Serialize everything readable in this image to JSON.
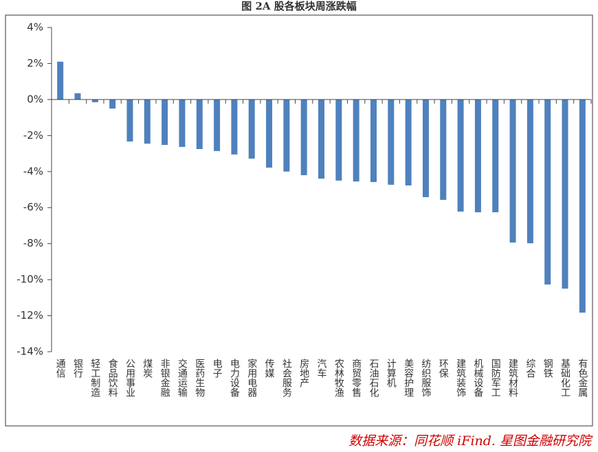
{
  "chart_data": {
    "type": "bar",
    "title": "图 2A 股各板块周涨跌幅",
    "source": "数据来源：同花顺 iFind. 星图金融研究院",
    "categories": [
      "通信",
      "银行",
      "轻工制造",
      "食品饮料",
      "公用事业",
      "煤炭",
      "非银金融",
      "交通运输",
      "医药生物",
      "电子",
      "电力设备",
      "家用电器",
      "传媒",
      "社会服务",
      "房地产",
      "汽车",
      "农林牧渔",
      "商贸零售",
      "石油石化",
      "计算机",
      "美容护理",
      "纺织服饰",
      "环保",
      "建筑装饰",
      "机械设备",
      "国防军工",
      "建筑材料",
      "综合",
      "钢铁",
      "基础化工",
      "有色金属"
    ],
    "values": [
      2.1,
      0.35,
      -0.15,
      -0.5,
      -2.33,
      -2.45,
      -2.52,
      -2.63,
      -2.75,
      -2.86,
      -3.05,
      -3.28,
      -3.78,
      -4.0,
      -4.2,
      -4.39,
      -4.5,
      -4.55,
      -4.58,
      -4.73,
      -4.77,
      -5.42,
      -5.57,
      -6.22,
      -6.26,
      -6.26,
      -7.94,
      -7.98,
      -10.27,
      -10.5,
      -11.83
    ],
    "color": "#4f81bd",
    "ylim": [
      -14,
      4
    ],
    "yticks": [
      {
        "value": 4,
        "label": "4%"
      },
      {
        "value": 2,
        "label": "2%"
      },
      {
        "value": 0,
        "label": "0%"
      },
      {
        "value": -2,
        "label": "-2%"
      },
      {
        "value": -4,
        "label": "-4%"
      },
      {
        "value": -6,
        "label": "-6%"
      },
      {
        "value": -8,
        "label": "-8%"
      },
      {
        "value": -10,
        "label": "-10%"
      },
      {
        "value": -12,
        "label": "-12%"
      },
      {
        "value": -14,
        "label": "-14%"
      }
    ],
    "grid": false
  }
}
